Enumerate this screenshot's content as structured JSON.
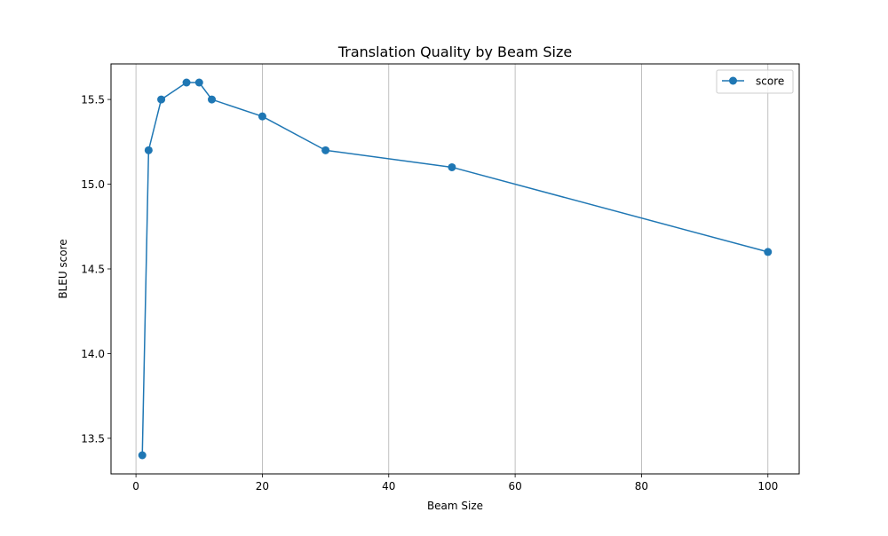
{
  "chart_data": {
    "type": "line",
    "title": "Translation Quality by Beam Size",
    "xlabel": "Beam Size",
    "ylabel": "BLEU score",
    "xlim": [
      -3.95,
      104.95
    ],
    "ylim": [
      13.29,
      15.71
    ],
    "xticks": [
      0,
      20,
      40,
      60,
      80,
      100
    ],
    "yticks": [
      13.5,
      14.0,
      14.5,
      15.0,
      15.5
    ],
    "grid": {
      "x": true,
      "y": false
    },
    "legend": {
      "placement": "top-right"
    },
    "series": [
      {
        "name": "score",
        "color": "#1f77b4",
        "marker": "circle",
        "x": [
          1,
          2,
          4,
          8,
          10,
          12,
          20,
          30,
          50,
          100
        ],
        "y": [
          13.4,
          15.2,
          15.5,
          15.6,
          15.6,
          15.5,
          15.4,
          15.2,
          15.1,
          14.6
        ]
      }
    ]
  }
}
